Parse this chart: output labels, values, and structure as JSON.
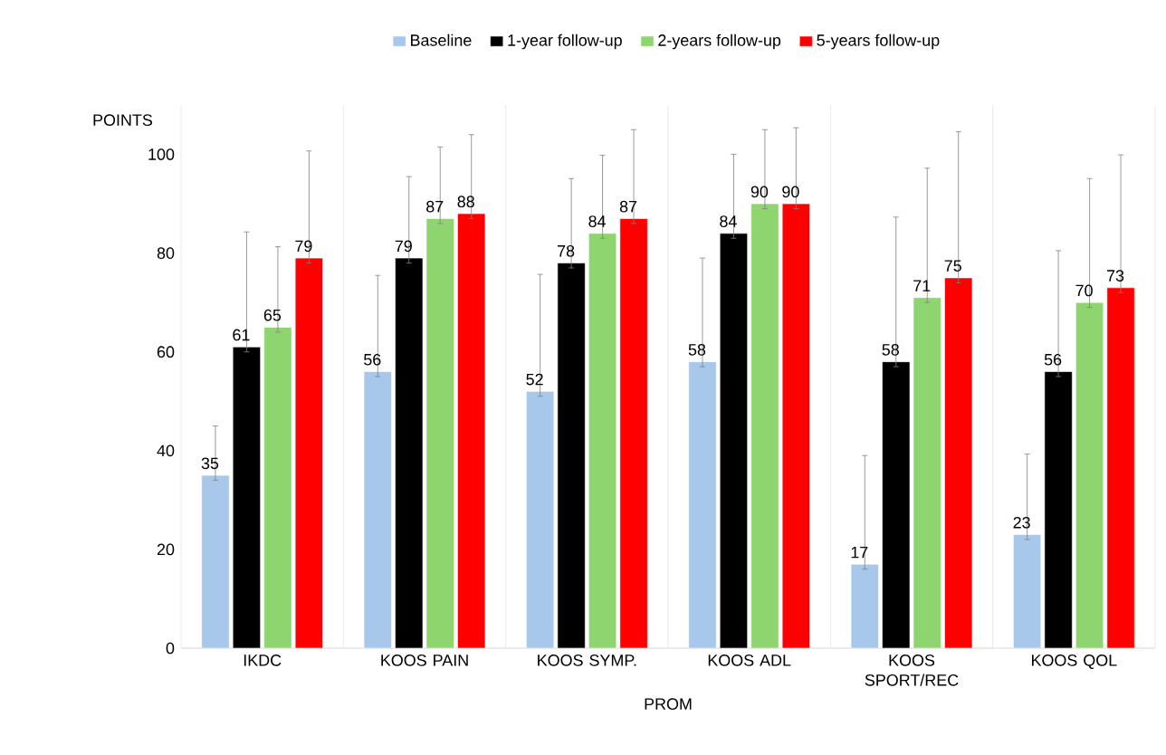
{
  "chart_data": {
    "type": "bar",
    "xlabel": "PROM",
    "ylabel": "POINTS",
    "categories": [
      "IKDC",
      "KOOS PAIN",
      "KOOS SYMP.",
      "KOOS ADL",
      "KOOS SPORT/REC",
      "KOOS QOL"
    ],
    "series": [
      {
        "name": "Baseline",
        "color": "#a7c8ea",
        "values": [
          35,
          56,
          52,
          58,
          17,
          23
        ],
        "errors": [
          [
            34,
            45
          ],
          [
            55,
            75.5
          ],
          [
            51,
            75.7
          ],
          [
            57,
            79
          ],
          [
            16,
            39
          ],
          [
            22,
            39.3
          ]
        ]
      },
      {
        "name": "1-year follow-up",
        "color": "#000000",
        "values": [
          61,
          79,
          78,
          84,
          58,
          56
        ],
        "errors": [
          [
            60,
            84.3
          ],
          [
            78,
            95.5
          ],
          [
            77,
            95.1
          ],
          [
            83,
            100
          ],
          [
            57,
            87.3
          ],
          [
            55,
            80.5
          ]
        ]
      },
      {
        "name": "2-years follow-up",
        "color": "#8ed56f",
        "values": [
          65,
          87,
          84,
          90,
          71,
          70
        ],
        "errors": [
          [
            64,
            81.3
          ],
          [
            86,
            101.5
          ],
          [
            83,
            99.8
          ],
          [
            89,
            105
          ],
          [
            70,
            97.2
          ],
          [
            69,
            95.1
          ]
        ]
      },
      {
        "name": "5-years follow-up",
        "color": "#ff0000",
        "values": [
          79,
          88,
          87,
          90,
          75,
          73
        ],
        "errors": [
          [
            78,
            100.7
          ],
          [
            87,
            104
          ],
          [
            86,
            105
          ],
          [
            89,
            105.4
          ],
          [
            74,
            104.6
          ],
          [
            72,
            99.9
          ]
        ]
      }
    ],
    "ylim": [
      0,
      110
    ],
    "yticks": [
      0,
      20,
      40,
      60,
      80,
      100
    ],
    "data_labels": true,
    "legend": "top"
  }
}
